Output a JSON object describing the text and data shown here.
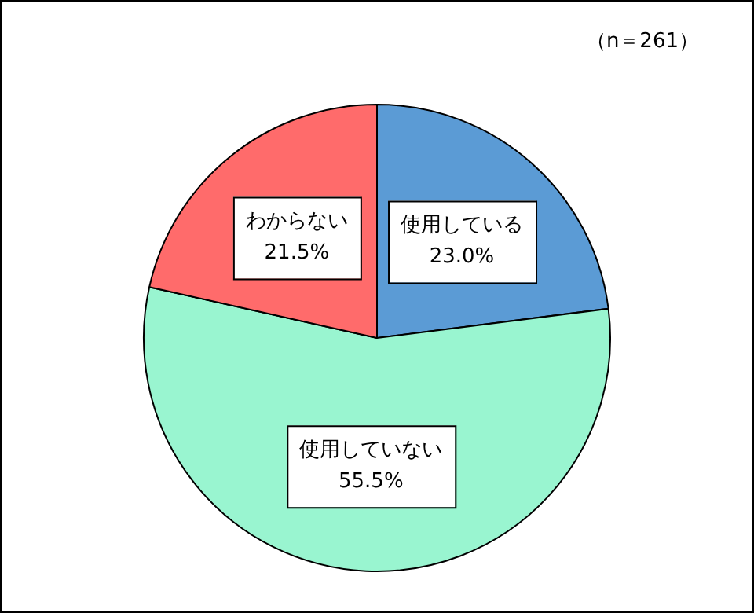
{
  "chart_data": {
    "type": "pie",
    "categories": [
      "使用している",
      "使用していない",
      "わからない"
    ],
    "values": [
      23.0,
      55.5,
      21.5
    ],
    "colors": [
      "#5b9bd5",
      "#99f5d0",
      "#ff6b6b"
    ],
    "value_labels": [
      "23.0%",
      "55.5%",
      "21.5%"
    ],
    "annotations": [
      "（n＝261）"
    ],
    "legend": false
  }
}
